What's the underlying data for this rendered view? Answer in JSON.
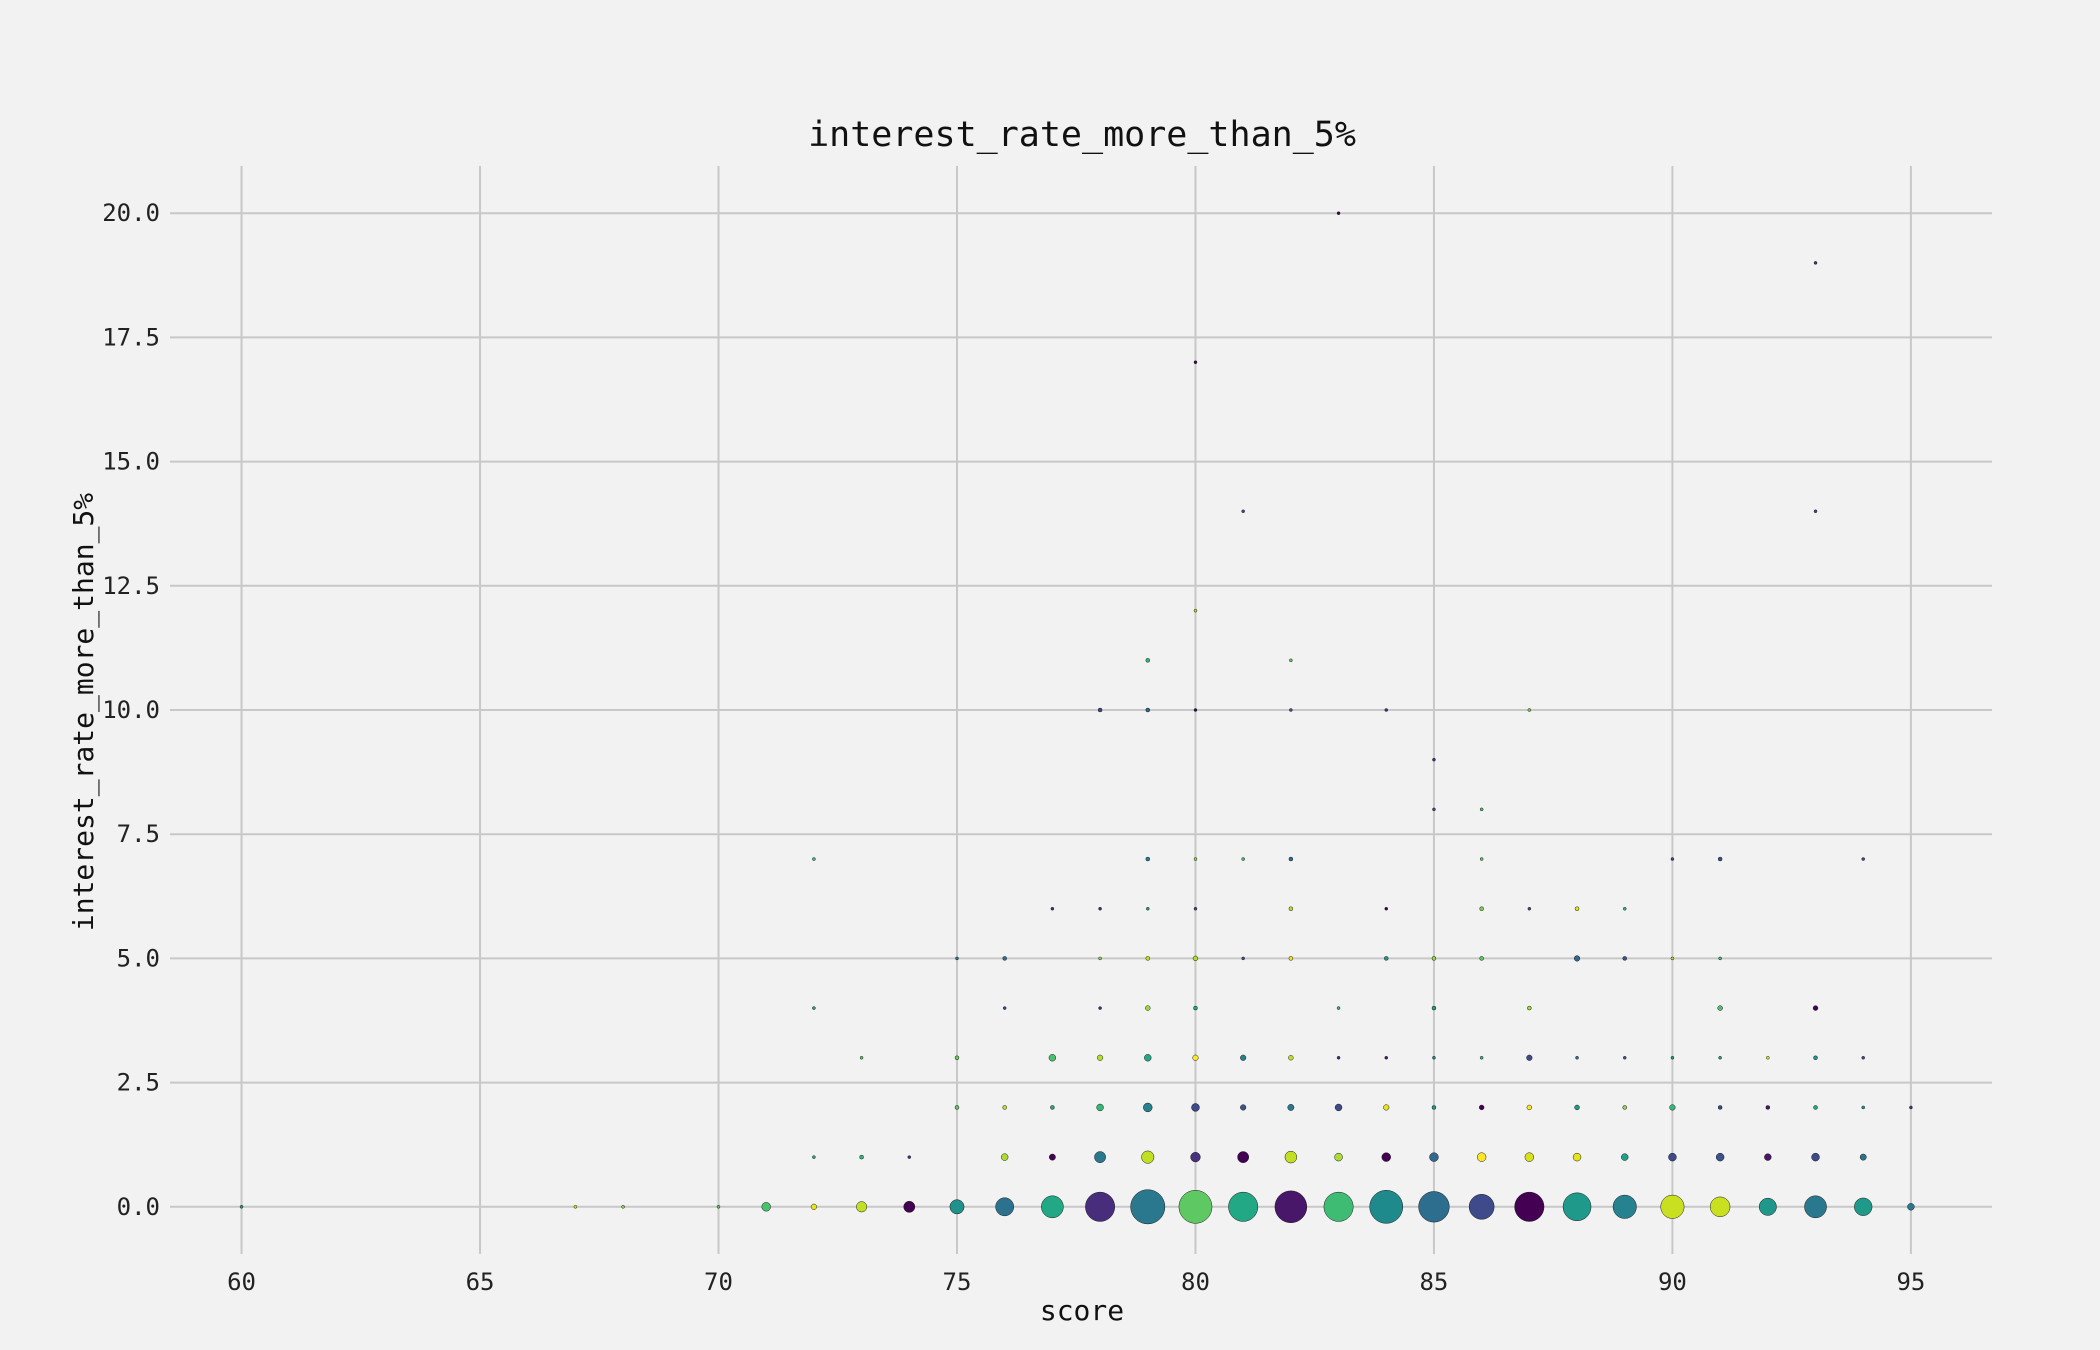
{
  "chart_data": {
    "type": "scatter",
    "title": "interest_rate_more_than_5%",
    "xlabel": "score",
    "ylabel": "interest_rate_more_than_5%",
    "xlim": [
      58.5,
      96.7
    ],
    "ylim": [
      -0.95,
      20.95
    ],
    "xticks": [
      60,
      65,
      70,
      75,
      80,
      85,
      90,
      95
    ],
    "yticks": [
      0,
      2.5,
      5,
      7.5,
      10,
      12.5,
      15,
      17.5,
      20
    ],
    "ytick_labels": [
      "0.0",
      "2.5",
      "5.0",
      "7.5",
      "10.0",
      "12.5",
      "15.0",
      "17.5",
      "20.0"
    ],
    "grid": true,
    "size_encoding": "marker size proportional to point count",
    "colormap": "viridis",
    "points": [
      {
        "x": 60,
        "y": 0,
        "size": 1,
        "color": "#2a9d7a"
      },
      {
        "x": 67,
        "y": 0,
        "size": 1,
        "color": "#d8e219"
      },
      {
        "x": 68,
        "y": 0,
        "size": 1,
        "color": "#8fd744"
      },
      {
        "x": 70,
        "y": 0,
        "size": 1,
        "color": "#5ec962"
      },
      {
        "x": 71,
        "y": 0,
        "size": 10,
        "color": "#4ac16d"
      },
      {
        "x": 72,
        "y": 0,
        "size": 4,
        "color": "#e6e419"
      },
      {
        "x": 73,
        "y": 0,
        "size": 14,
        "color": "#c2df23"
      },
      {
        "x": 74,
        "y": 0,
        "size": 16,
        "color": "#440154"
      },
      {
        "x": 75,
        "y": 0,
        "size": 26,
        "color": "#21918c"
      },
      {
        "x": 76,
        "y": 0,
        "size": 42,
        "color": "#2c728e"
      },
      {
        "x": 77,
        "y": 0,
        "size": 62,
        "color": "#22a884"
      },
      {
        "x": 78,
        "y": 0,
        "size": 110,
        "color": "#472d7b"
      },
      {
        "x": 79,
        "y": 0,
        "size": 150,
        "color": "#2a788e"
      },
      {
        "x": 80,
        "y": 0,
        "size": 140,
        "color": "#5ec962"
      },
      {
        "x": 81,
        "y": 0,
        "size": 110,
        "color": "#22a884"
      },
      {
        "x": 82,
        "y": 0,
        "size": 130,
        "color": "#481769"
      },
      {
        "x": 83,
        "y": 0,
        "size": 110,
        "color": "#3fbc73"
      },
      {
        "x": 84,
        "y": 0,
        "size": 140,
        "color": "#1f8a8c"
      },
      {
        "x": 85,
        "y": 0,
        "size": 120,
        "color": "#2d6e8e"
      },
      {
        "x": 86,
        "y": 0,
        "size": 80,
        "color": "#3e4a89"
      },
      {
        "x": 87,
        "y": 0,
        "size": 110,
        "color": "#440154"
      },
      {
        "x": 88,
        "y": 0,
        "size": 100,
        "color": "#1f998a"
      },
      {
        "x": 89,
        "y": 0,
        "size": 70,
        "color": "#26828e"
      },
      {
        "x": 90,
        "y": 0,
        "size": 70,
        "color": "#c8e020"
      },
      {
        "x": 91,
        "y": 0,
        "size": 50,
        "color": "#c8e020"
      },
      {
        "x": 92,
        "y": 0,
        "size": 38,
        "color": "#1f988b"
      },
      {
        "x": 93,
        "y": 0,
        "size": 62,
        "color": "#2a788e"
      },
      {
        "x": 94,
        "y": 0,
        "size": 40,
        "color": "#1f9a8a"
      },
      {
        "x": 95,
        "y": 0,
        "size": 6,
        "color": "#2a788e"
      },
      {
        "x": 72,
        "y": 1,
        "size": 1,
        "color": "#22a884"
      },
      {
        "x": 73,
        "y": 1,
        "size": 2,
        "color": "#35b779"
      },
      {
        "x": 74,
        "y": 1,
        "size": 1,
        "color": "#46337e"
      },
      {
        "x": 76,
        "y": 1,
        "size": 6,
        "color": "#addc30"
      },
      {
        "x": 77,
        "y": 1,
        "size": 5,
        "color": "#440154"
      },
      {
        "x": 78,
        "y": 1,
        "size": 16,
        "color": "#2a788e"
      },
      {
        "x": 79,
        "y": 1,
        "size": 20,
        "color": "#c2df23"
      },
      {
        "x": 80,
        "y": 1,
        "size": 12,
        "color": "#46327e"
      },
      {
        "x": 81,
        "y": 1,
        "size": 16,
        "color": "#440154"
      },
      {
        "x": 82,
        "y": 1,
        "size": 18,
        "color": "#c2df23"
      },
      {
        "x": 83,
        "y": 1,
        "size": 8,
        "color": "#addc30"
      },
      {
        "x": 84,
        "y": 1,
        "size": 10,
        "color": "#440154"
      },
      {
        "x": 85,
        "y": 1,
        "size": 10,
        "color": "#31688e"
      },
      {
        "x": 86,
        "y": 1,
        "size": 10,
        "color": "#fde725"
      },
      {
        "x": 87,
        "y": 1,
        "size": 10,
        "color": "#d8e219"
      },
      {
        "x": 88,
        "y": 1,
        "size": 8,
        "color": "#e6e419"
      },
      {
        "x": 89,
        "y": 1,
        "size": 6,
        "color": "#1fa187"
      },
      {
        "x": 90,
        "y": 1,
        "size": 8,
        "color": "#3e4a89"
      },
      {
        "x": 91,
        "y": 1,
        "size": 8,
        "color": "#3b528b"
      },
      {
        "x": 92,
        "y": 1,
        "size": 6,
        "color": "#481769"
      },
      {
        "x": 93,
        "y": 1,
        "size": 8,
        "color": "#3e4a89"
      },
      {
        "x": 94,
        "y": 1,
        "size": 5,
        "color": "#2c728e"
      },
      {
        "x": 75,
        "y": 2,
        "size": 2,
        "color": "#5ec962"
      },
      {
        "x": 76,
        "y": 2,
        "size": 2,
        "color": "#c2df23"
      },
      {
        "x": 77,
        "y": 2,
        "size": 2,
        "color": "#22a884"
      },
      {
        "x": 78,
        "y": 2,
        "size": 6,
        "color": "#35b779"
      },
      {
        "x": 79,
        "y": 2,
        "size": 10,
        "color": "#26828e"
      },
      {
        "x": 80,
        "y": 2,
        "size": 8,
        "color": "#3e4a89"
      },
      {
        "x": 81,
        "y": 2,
        "size": 4,
        "color": "#3b528b"
      },
      {
        "x": 82,
        "y": 2,
        "size": 5,
        "color": "#2a788e"
      },
      {
        "x": 83,
        "y": 2,
        "size": 6,
        "color": "#3e4a89"
      },
      {
        "x": 84,
        "y": 2,
        "size": 4,
        "color": "#e6e419"
      },
      {
        "x": 85,
        "y": 2,
        "size": 2,
        "color": "#1f988b"
      },
      {
        "x": 86,
        "y": 2,
        "size": 3,
        "color": "#440154"
      },
      {
        "x": 87,
        "y": 2,
        "size": 3,
        "color": "#fde725"
      },
      {
        "x": 88,
        "y": 2,
        "size": 3,
        "color": "#1f998a"
      },
      {
        "x": 89,
        "y": 2,
        "size": 2,
        "color": "#8fd744"
      },
      {
        "x": 90,
        "y": 2,
        "size": 4,
        "color": "#35b779"
      },
      {
        "x": 91,
        "y": 2,
        "size": 2,
        "color": "#3e4a89"
      },
      {
        "x": 92,
        "y": 2,
        "size": 2,
        "color": "#481769"
      },
      {
        "x": 93,
        "y": 2,
        "size": 2,
        "color": "#22a884"
      },
      {
        "x": 94,
        "y": 2,
        "size": 1,
        "color": "#1f988b"
      },
      {
        "x": 95,
        "y": 2,
        "size": 1,
        "color": "#46327e"
      },
      {
        "x": 73,
        "y": 3,
        "size": 1,
        "color": "#5ec962"
      },
      {
        "x": 75,
        "y": 3,
        "size": 2,
        "color": "#6ccd5a"
      },
      {
        "x": 77,
        "y": 3,
        "size": 6,
        "color": "#4ac16d"
      },
      {
        "x": 78,
        "y": 3,
        "size": 4,
        "color": "#b5de2b"
      },
      {
        "x": 79,
        "y": 3,
        "size": 6,
        "color": "#22a884"
      },
      {
        "x": 80,
        "y": 3,
        "size": 4,
        "color": "#fde725"
      },
      {
        "x": 81,
        "y": 3,
        "size": 4,
        "color": "#26828e"
      },
      {
        "x": 82,
        "y": 3,
        "size": 3,
        "color": "#c2df23"
      },
      {
        "x": 83,
        "y": 3,
        "size": 1,
        "color": "#482878"
      },
      {
        "x": 84,
        "y": 3,
        "size": 1,
        "color": "#481769"
      },
      {
        "x": 85,
        "y": 3,
        "size": 1,
        "color": "#26828e"
      },
      {
        "x": 86,
        "y": 3,
        "size": 1,
        "color": "#35b779"
      },
      {
        "x": 87,
        "y": 3,
        "size": 4,
        "color": "#3e4a89"
      },
      {
        "x": 88,
        "y": 3,
        "size": 1,
        "color": "#2c728e"
      },
      {
        "x": 89,
        "y": 3,
        "size": 1,
        "color": "#3b528b"
      },
      {
        "x": 90,
        "y": 3,
        "size": 1,
        "color": "#1f988b"
      },
      {
        "x": 91,
        "y": 3,
        "size": 1,
        "color": "#2a9d7a"
      },
      {
        "x": 92,
        "y": 3,
        "size": 1,
        "color": "#d8e219"
      },
      {
        "x": 93,
        "y": 3,
        "size": 2,
        "color": "#1f988b"
      },
      {
        "x": 94,
        "y": 3,
        "size": 1,
        "color": "#3e4a89"
      },
      {
        "x": 72,
        "y": 4,
        "size": 1,
        "color": "#2a9d7a"
      },
      {
        "x": 76,
        "y": 4,
        "size": 1,
        "color": "#3e4a89"
      },
      {
        "x": 78,
        "y": 4,
        "size": 1,
        "color": "#482878"
      },
      {
        "x": 79,
        "y": 4,
        "size": 3,
        "color": "#9fda3a"
      },
      {
        "x": 80,
        "y": 4,
        "size": 2,
        "color": "#22a884"
      },
      {
        "x": 83,
        "y": 4,
        "size": 1,
        "color": "#35b779"
      },
      {
        "x": 85,
        "y": 4,
        "size": 2,
        "color": "#2a9d7a"
      },
      {
        "x": 87,
        "y": 4,
        "size": 2,
        "color": "#a2da37"
      },
      {
        "x": 91,
        "y": 4,
        "size": 3,
        "color": "#4ac16d"
      },
      {
        "x": 93,
        "y": 4,
        "size": 3,
        "color": "#440154"
      },
      {
        "x": 75,
        "y": 5,
        "size": 1,
        "color": "#2a788e"
      },
      {
        "x": 76,
        "y": 5,
        "size": 2,
        "color": "#2c728e"
      },
      {
        "x": 78,
        "y": 5,
        "size": 1,
        "color": "#8fd744"
      },
      {
        "x": 79,
        "y": 5,
        "size": 2,
        "color": "#c8e020"
      },
      {
        "x": 80,
        "y": 5,
        "size": 3,
        "color": "#addc30"
      },
      {
        "x": 81,
        "y": 5,
        "size": 1,
        "color": "#3b528b"
      },
      {
        "x": 82,
        "y": 5,
        "size": 2,
        "color": "#f1e51d"
      },
      {
        "x": 84,
        "y": 5,
        "size": 2,
        "color": "#1f998a"
      },
      {
        "x": 85,
        "y": 5,
        "size": 2,
        "color": "#8fd744"
      },
      {
        "x": 86,
        "y": 5,
        "size": 2,
        "color": "#5ec962"
      },
      {
        "x": 88,
        "y": 5,
        "size": 4,
        "color": "#31688e"
      },
      {
        "x": 89,
        "y": 5,
        "size": 2,
        "color": "#3b528b"
      },
      {
        "x": 90,
        "y": 5,
        "size": 1,
        "color": "#b5de2b"
      },
      {
        "x": 91,
        "y": 5,
        "size": 1,
        "color": "#3fbc73"
      },
      {
        "x": 77,
        "y": 6,
        "size": 1,
        "color": "#46337e"
      },
      {
        "x": 78,
        "y": 6,
        "size": 1,
        "color": "#482878"
      },
      {
        "x": 79,
        "y": 6,
        "size": 1,
        "color": "#2a9d7a"
      },
      {
        "x": 80,
        "y": 6,
        "size": 1,
        "color": "#3e4a89"
      },
      {
        "x": 82,
        "y": 6,
        "size": 2,
        "color": "#b5de2b"
      },
      {
        "x": 84,
        "y": 6,
        "size": 1,
        "color": "#440154"
      },
      {
        "x": 86,
        "y": 6,
        "size": 2,
        "color": "#7ad151"
      },
      {
        "x": 87,
        "y": 6,
        "size": 1,
        "color": "#5b3c8a"
      },
      {
        "x": 88,
        "y": 6,
        "size": 2,
        "color": "#e6e419"
      },
      {
        "x": 89,
        "y": 6,
        "size": 1,
        "color": "#35b779"
      },
      {
        "x": 72,
        "y": 7,
        "size": 1,
        "color": "#35b779"
      },
      {
        "x": 79,
        "y": 7,
        "size": 2,
        "color": "#26828e"
      },
      {
        "x": 80,
        "y": 7,
        "size": 1,
        "color": "#8fd744"
      },
      {
        "x": 81,
        "y": 7,
        "size": 1,
        "color": "#3fbc73"
      },
      {
        "x": 82,
        "y": 7,
        "size": 2,
        "color": "#2c728e"
      },
      {
        "x": 86,
        "y": 7,
        "size": 1,
        "color": "#5ec962"
      },
      {
        "x": 90,
        "y": 7,
        "size": 1,
        "color": "#3e4a89"
      },
      {
        "x": 91,
        "y": 7,
        "size": 2,
        "color": "#3b528b"
      },
      {
        "x": 94,
        "y": 7,
        "size": 1,
        "color": "#3e4a89"
      },
      {
        "x": 85,
        "y": 8,
        "size": 1,
        "color": "#3b528b"
      },
      {
        "x": 86,
        "y": 8,
        "size": 1,
        "color": "#4ac16d"
      },
      {
        "x": 85,
        "y": 9,
        "size": 1,
        "color": "#46327e"
      },
      {
        "x": 78,
        "y": 10,
        "size": 2,
        "color": "#3e4a89"
      },
      {
        "x": 79,
        "y": 10,
        "size": 2,
        "color": "#31688e"
      },
      {
        "x": 80,
        "y": 10,
        "size": 1,
        "color": "#2a1858"
      },
      {
        "x": 82,
        "y": 10,
        "size": 1,
        "color": "#3b528b"
      },
      {
        "x": 84,
        "y": 10,
        "size": 1,
        "color": "#46327e"
      },
      {
        "x": 87,
        "y": 10,
        "size": 1,
        "color": "#7ad151"
      },
      {
        "x": 79,
        "y": 11,
        "size": 2,
        "color": "#35b779"
      },
      {
        "x": 82,
        "y": 11,
        "size": 1,
        "color": "#5ec962"
      },
      {
        "x": 80,
        "y": 12,
        "size": 1,
        "color": "#c2df23"
      },
      {
        "x": 81,
        "y": 14,
        "size": 1,
        "color": "#3e4a89"
      },
      {
        "x": 93,
        "y": 14,
        "size": 1,
        "color": "#3e4a89"
      },
      {
        "x": 80,
        "y": 17,
        "size": 1,
        "color": "#440154"
      },
      {
        "x": 93,
        "y": 19,
        "size": 1,
        "color": "#46327e"
      },
      {
        "x": 83,
        "y": 20,
        "size": 1,
        "color": "#440154"
      }
    ]
  }
}
